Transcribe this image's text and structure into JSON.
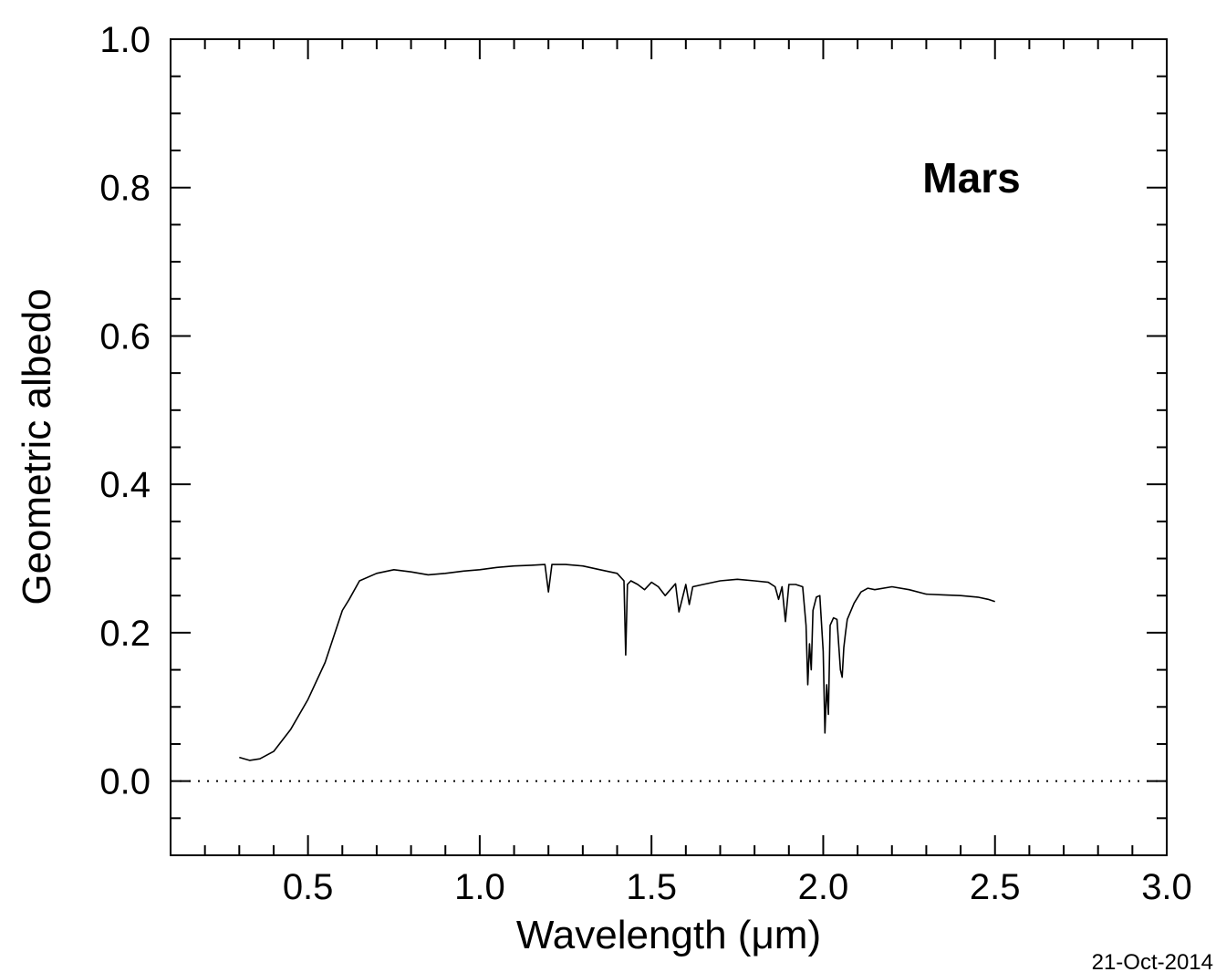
{
  "chart_data": {
    "type": "line",
    "xlabel": "Wavelength (μm)",
    "ylabel": "Geometric albedo",
    "annotation": "Mars",
    "date_stamp": "21-Oct-2014",
    "xlim": [
      0.1,
      3.0
    ],
    "ylim": [
      -0.1,
      1.0
    ],
    "x_ticks": [
      0.5,
      1.0,
      1.5,
      2.0,
      2.5,
      3.0
    ],
    "x_tick_labels": [
      "0.5",
      "1.0",
      "1.5",
      "2.0",
      "2.5",
      "3.0"
    ],
    "y_ticks": [
      0.0,
      0.2,
      0.4,
      0.6,
      0.8,
      1.0
    ],
    "y_tick_labels": [
      "0.0",
      "0.2",
      "0.4",
      "0.6",
      "0.8",
      "1.0"
    ],
    "reference_line": {
      "y": 0.0,
      "style": "dotted"
    },
    "grid": false,
    "series": [
      {
        "x": [
          0.3,
          0.33,
          0.36,
          0.4,
          0.45,
          0.5,
          0.55,
          0.6,
          0.62,
          0.65,
          0.7,
          0.75,
          0.8,
          0.85,
          0.9,
          0.95,
          1.0,
          1.05,
          1.1,
          1.15,
          1.19,
          1.2,
          1.21,
          1.25,
          1.3,
          1.35,
          1.4,
          1.41,
          1.42,
          1.425,
          1.43,
          1.44,
          1.46,
          1.48,
          1.5,
          1.52,
          1.54,
          1.57,
          1.58,
          1.6,
          1.61,
          1.62,
          1.65,
          1.7,
          1.75,
          1.8,
          1.84,
          1.86,
          1.87,
          1.88,
          1.89,
          1.9,
          1.92,
          1.94,
          1.95,
          1.955,
          1.96,
          1.965,
          1.97,
          1.98,
          1.99,
          2.0,
          2.005,
          2.01,
          2.015,
          2.02,
          2.03,
          2.04,
          2.05,
          2.055,
          2.06,
          2.065,
          2.07,
          2.09,
          2.11,
          2.13,
          2.15,
          2.2,
          2.25,
          2.3,
          2.35,
          2.4,
          2.45,
          2.48,
          2.5
        ],
        "y": [
          0.032,
          0.028,
          0.03,
          0.04,
          0.07,
          0.11,
          0.16,
          0.23,
          0.245,
          0.27,
          0.28,
          0.285,
          0.282,
          0.278,
          0.28,
          0.283,
          0.285,
          0.288,
          0.29,
          0.291,
          0.292,
          0.255,
          0.292,
          0.292,
          0.29,
          0.285,
          0.28,
          0.275,
          0.27,
          0.17,
          0.265,
          0.27,
          0.265,
          0.258,
          0.268,
          0.262,
          0.25,
          0.266,
          0.228,
          0.265,
          0.238,
          0.262,
          0.265,
          0.27,
          0.272,
          0.27,
          0.268,
          0.262,
          0.245,
          0.262,
          0.215,
          0.265,
          0.265,
          0.262,
          0.21,
          0.13,
          0.185,
          0.15,
          0.23,
          0.248,
          0.25,
          0.175,
          0.065,
          0.13,
          0.09,
          0.21,
          0.22,
          0.218,
          0.15,
          0.14,
          0.18,
          0.2,
          0.218,
          0.24,
          0.255,
          0.26,
          0.258,
          0.262,
          0.258,
          0.252,
          0.251,
          0.25,
          0.248,
          0.245,
          0.242
        ]
      }
    ]
  }
}
